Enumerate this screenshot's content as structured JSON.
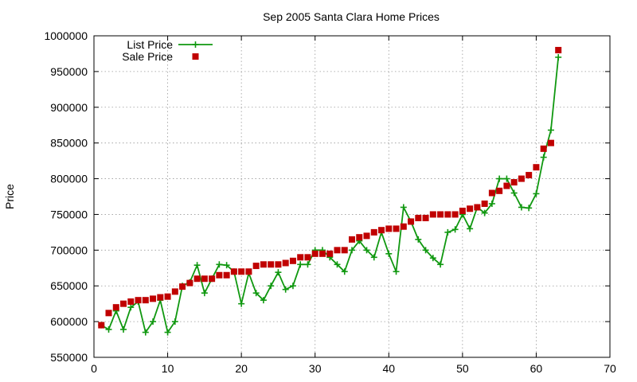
{
  "chart_data": {
    "type": "line",
    "title": "Sep 2005 Santa Clara Home Prices",
    "xlabel": "",
    "ylabel": "Price",
    "xlim": [
      0,
      70
    ],
    "ylim": [
      550000,
      1000000
    ],
    "xticks": [
      0,
      10,
      20,
      30,
      40,
      50,
      60,
      70
    ],
    "yticks": [
      550000,
      600000,
      650000,
      700000,
      750000,
      800000,
      850000,
      900000,
      950000,
      1000000
    ],
    "grid": true,
    "legend_position": "top-left",
    "series": [
      {
        "name": "List Price",
        "style": "linespoints",
        "marker": "plus",
        "color": "#109810",
        "x": [
          1,
          2,
          3,
          4,
          5,
          6,
          7,
          8,
          9,
          10,
          11,
          12,
          13,
          14,
          15,
          16,
          17,
          18,
          19,
          20,
          21,
          22,
          23,
          24,
          25,
          26,
          27,
          28,
          29,
          30,
          31,
          32,
          33,
          34,
          35,
          36,
          37,
          38,
          39,
          40,
          41,
          42,
          43,
          44,
          45,
          46,
          47,
          48,
          49,
          50,
          51,
          52,
          53,
          54,
          55,
          56,
          57,
          58,
          59,
          60,
          61,
          62,
          63
        ],
        "y": [
          595000,
          589000,
          615000,
          589000,
          620000,
          628000,
          585000,
          600000,
          630000,
          585000,
          600000,
          650000,
          655000,
          679000,
          640000,
          660000,
          680000,
          679000,
          670000,
          625000,
          668000,
          640000,
          630000,
          650000,
          669000,
          645000,
          650000,
          680000,
          680000,
          700000,
          700000,
          690000,
          680000,
          670000,
          700000,
          713000,
          700000,
          690000,
          725000,
          695000,
          670000,
          760000,
          740000,
          715000,
          700000,
          689000,
          680000,
          725000,
          729000,
          750000,
          730000,
          760000,
          752000,
          765000,
          800000,
          800000,
          780000,
          760000,
          759000,
          779000,
          830000,
          868000,
          970000
        ]
      },
      {
        "name": "Sale Price",
        "style": "points",
        "marker": "square",
        "color": "#c00000",
        "x": [
          1,
          2,
          3,
          4,
          5,
          6,
          7,
          8,
          9,
          10,
          11,
          12,
          13,
          14,
          15,
          16,
          17,
          18,
          19,
          20,
          21,
          22,
          23,
          24,
          25,
          26,
          27,
          28,
          29,
          30,
          31,
          32,
          33,
          34,
          35,
          36,
          37,
          38,
          39,
          40,
          41,
          42,
          43,
          44,
          45,
          46,
          47,
          48,
          49,
          50,
          51,
          52,
          53,
          54,
          55,
          56,
          57,
          58,
          59,
          60,
          61,
          62,
          63
        ],
        "y": [
          595000,
          612000,
          620000,
          625000,
          628000,
          630000,
          630000,
          632000,
          634000,
          635000,
          642000,
          649000,
          654000,
          660000,
          660000,
          660000,
          665000,
          665000,
          670000,
          670000,
          670000,
          678000,
          680000,
          680000,
          680000,
          682000,
          685000,
          690000,
          690000,
          695000,
          695000,
          695000,
          700000,
          700000,
          715000,
          718000,
          720000,
          725000,
          728000,
          730000,
          730000,
          733000,
          740000,
          745000,
          745000,
          750000,
          750000,
          750000,
          750000,
          755000,
          758000,
          760000,
          765000,
          780000,
          783000,
          790000,
          795000,
          800000,
          805000,
          816000,
          842000,
          850000,
          980000
        ]
      }
    ]
  }
}
